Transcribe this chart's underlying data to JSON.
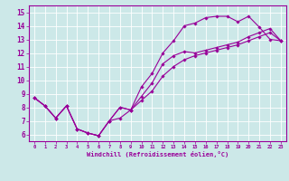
{
  "xlabel": "Windchill (Refroidissement éolien,°C)",
  "bg_color": "#cce8e8",
  "line_color": "#990099",
  "grid_color": "#ffffff",
  "xlim": [
    -0.5,
    23.5
  ],
  "ylim": [
    5.5,
    15.5
  ],
  "xticks": [
    0,
    1,
    2,
    3,
    4,
    5,
    6,
    7,
    8,
    9,
    10,
    11,
    12,
    13,
    14,
    15,
    16,
    17,
    18,
    19,
    20,
    21,
    22,
    23
  ],
  "yticks": [
    6,
    7,
    8,
    9,
    10,
    11,
    12,
    13,
    14,
    15
  ],
  "line1_x": [
    0,
    1,
    2,
    3,
    4,
    5,
    6,
    7,
    8,
    9,
    10,
    11,
    12,
    13,
    14,
    15,
    16,
    17,
    18,
    19,
    20,
    21,
    22,
    23
  ],
  "line1_y": [
    8.7,
    8.1,
    7.2,
    8.1,
    6.4,
    6.1,
    5.9,
    7.0,
    7.2,
    7.8,
    9.5,
    10.5,
    12.0,
    12.9,
    14.0,
    14.2,
    14.6,
    14.7,
    14.7,
    14.3,
    14.7,
    13.9,
    13.0,
    12.9
  ],
  "line2_x": [
    0,
    1,
    2,
    3,
    4,
    5,
    6,
    7,
    8,
    9,
    10,
    11,
    12,
    13,
    14,
    15,
    16,
    17,
    18,
    19,
    20,
    21,
    22,
    23
  ],
  "line2_y": [
    8.7,
    8.1,
    7.2,
    8.1,
    6.4,
    6.1,
    5.9,
    7.0,
    8.0,
    7.8,
    8.8,
    9.8,
    11.2,
    11.8,
    12.1,
    12.0,
    12.2,
    12.4,
    12.6,
    12.8,
    13.2,
    13.5,
    13.8,
    12.9
  ],
  "line3_x": [
    0,
    1,
    2,
    3,
    4,
    5,
    6,
    7,
    8,
    9,
    10,
    11,
    12,
    13,
    14,
    15,
    16,
    17,
    18,
    19,
    20,
    21,
    22,
    23
  ],
  "line3_y": [
    8.7,
    8.1,
    7.2,
    8.1,
    6.4,
    6.1,
    5.9,
    7.0,
    8.0,
    7.8,
    8.5,
    9.2,
    10.3,
    11.0,
    11.5,
    11.8,
    12.0,
    12.2,
    12.4,
    12.6,
    12.9,
    13.2,
    13.5,
    12.9
  ]
}
